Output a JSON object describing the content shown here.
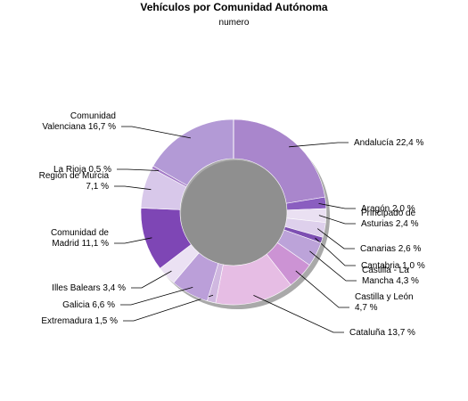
{
  "chart_data": {
    "type": "pie",
    "variant": "donut",
    "title": "Vehículos por Comunidad Autónoma",
    "subtitle": "numero",
    "slices": [
      {
        "label": [
          "Andalucía 22,4 %"
        ],
        "value": 22.4,
        "color": "#a986cc"
      },
      {
        "label": [
          "Aragón 2,0 %"
        ],
        "value": 2.0,
        "color": "#8a5ec0"
      },
      {
        "label": [
          "Principado de",
          "Asturias 2,4 %"
        ],
        "value": 2.4,
        "color": "#eae0f2"
      },
      {
        "label": [
          "Canarias 2,6 %"
        ],
        "value": 2.6,
        "color": "#ded0ec"
      },
      {
        "label": [
          "Cantabria 1,0 %"
        ],
        "value": 1.0,
        "color": "#7d4fb2"
      },
      {
        "label": [
          "Castilla - La",
          "Mancha 4,3 %"
        ],
        "value": 4.3,
        "color": "#bca3d9"
      },
      {
        "label": [
          "Castilla y León",
          "4,7 %"
        ],
        "value": 4.7,
        "color": "#cc93d4"
      },
      {
        "label": [
          "Cataluña 13,7 %"
        ],
        "value": 13.7,
        "color": "#e6bde4"
      },
      {
        "label": [
          "Extremadura 1,5 %"
        ],
        "value": 1.5,
        "color": "#d0b8e0"
      },
      {
        "label": [
          "Galicia 6,6 %"
        ],
        "value": 6.6,
        "color": "#bb9fd9"
      },
      {
        "label": [
          "Illes Balears 3,4 %"
        ],
        "value": 3.4,
        "color": "#ebe1f3"
      },
      {
        "label": [
          "Comunidad de",
          "Madrid 11,1 %"
        ],
        "value": 11.1,
        "color": "#7e46b5"
      },
      {
        "label": [
          "Región de Murcia",
          "7,1 %"
        ],
        "value": 7.1,
        "color": "#d8c8ea"
      },
      {
        "label": [
          "La Rioja 0,5 %"
        ],
        "value": 0.5,
        "color": "#a57cc8"
      },
      {
        "label": [
          "Comunidad",
          "Valenciana 16,7 %"
        ],
        "value": 16.7,
        "color": "#b39ad6"
      }
    ]
  }
}
